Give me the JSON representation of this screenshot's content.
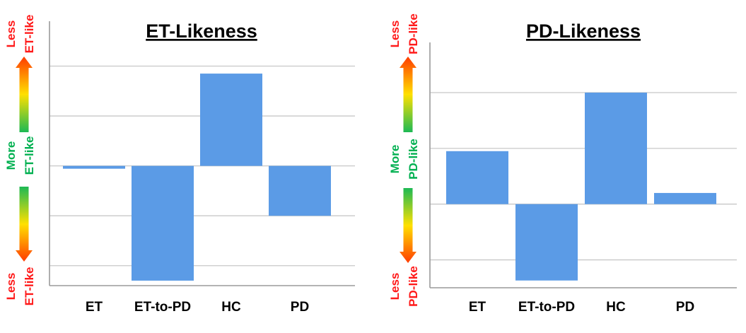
{
  "colors": {
    "bar": "#5b9be6",
    "less_text": "#ff1a1a",
    "more_text": "#00b050",
    "arrow_gradient_top": "#ff3b00",
    "arrow_gradient_mid": "#ffe000",
    "arrow_gradient_bottom": "#1db954"
  },
  "chart_data": [
    {
      "type": "bar",
      "title": "ET-Likeness",
      "categories": [
        "ET",
        "ET-to-PD",
        "HC",
        "PD"
      ],
      "values": [
        -0.05,
        -2.3,
        1.85,
        -1.0
      ],
      "ylim": [
        -2.4,
        2.9
      ],
      "gridlines": [
        -2,
        -1,
        0,
        1,
        2
      ],
      "grid": true,
      "side_labels": {
        "top_less": [
          "Less",
          "ET-like"
        ],
        "middle_more": [
          "More",
          "ET-like"
        ],
        "bottom_less": [
          "Less",
          "ET-like"
        ]
      }
    },
    {
      "type": "bar",
      "title": "PD-Likeness",
      "categories": [
        "ET",
        "ET-to-PD",
        "HC",
        "PD"
      ],
      "values": [
        0.95,
        -1.37,
        2.0,
        0.2
      ],
      "ylim": [
        -1.5,
        2.9
      ],
      "gridlines": [
        -1,
        0,
        1,
        2
      ],
      "grid": true,
      "side_labels": {
        "top_less": [
          "Less",
          "PD-like"
        ],
        "middle_more": [
          "More",
          "PD-like"
        ],
        "bottom_less": [
          "Less",
          "PD-like"
        ]
      }
    }
  ]
}
